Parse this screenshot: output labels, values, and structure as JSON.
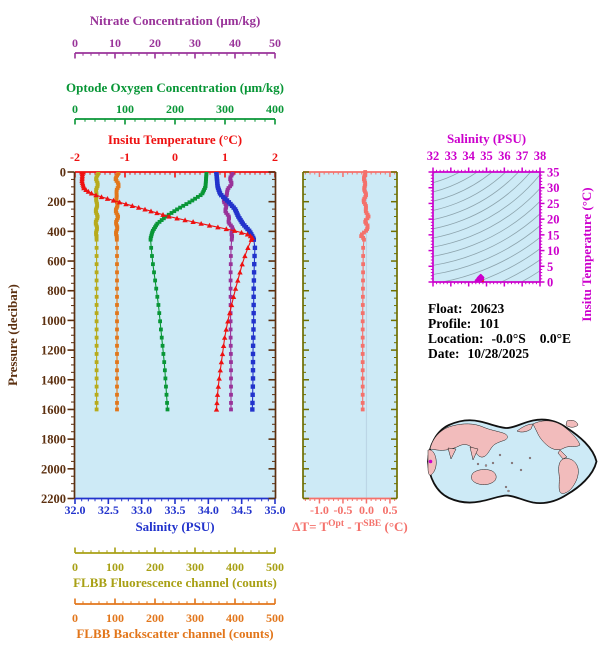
{
  "float_info": {
    "float_label": "Float:",
    "float_value": "20623",
    "profile_label": "Profile:",
    "profile_value": "101",
    "location_label": "Location:",
    "lat_value": "-0.0°S",
    "lon_value": "0.0°E",
    "date_label": "Date:",
    "date_value": "10/28/2025"
  },
  "colors": {
    "background": "#ffffff",
    "plot_bg": "#cdeaf6",
    "pressure_axis": "#5c3010",
    "temperature": "#ee1111",
    "salinity": "#2233cc",
    "oxygen": "#089636",
    "nitrate": "#993399",
    "fluorescence": "#a8a014",
    "backscatter": "#e2761b",
    "delta_t": "#f4716b",
    "delta_side_axis": "#6f6f00",
    "zero_gridline": "#bcd6e6",
    "ts_axis": "#cc00cc",
    "contour": "#8da4ad",
    "map_land": "#f2bcbc",
    "map_ocean": "#cdeaf6",
    "map_outline": "#111111",
    "map_marker": "#cc00cc"
  },
  "chart_data": [
    {
      "type": "line",
      "title": "Main profile panel: property profiles vs pressure",
      "ylabel": "Pressure (decibar)",
      "ylim": [
        0,
        2200
      ],
      "y_ticks": [
        "0",
        "200",
        "400",
        "600",
        "800",
        "1000",
        "1200",
        "1400",
        "1600",
        "1800",
        "2000",
        "2200"
      ],
      "y_minor_step": 50,
      "grid": false,
      "axes": [
        {
          "id": "nitrate",
          "label": "Nitrate Concentration (μm/kg)",
          "position": "top",
          "range": [
            0,
            50
          ],
          "ticks": [
            "0",
            "10",
            "20",
            "30",
            "40",
            "50"
          ],
          "minor_step": 2,
          "color": "#993399"
        },
        {
          "id": "oxygen",
          "label": "Optode Oxygen Concentration (μm/kg)",
          "position": "top",
          "range": [
            0,
            400
          ],
          "ticks": [
            "0",
            "100",
            "200",
            "300",
            "400"
          ],
          "minor_step": 20,
          "color": "#089636"
        },
        {
          "id": "temperature",
          "label": "Insitu Temperature (°C)",
          "position": "top",
          "range": [
            -2,
            2
          ],
          "ticks": [
            "-2",
            "-1",
            "0",
            "1",
            "2"
          ],
          "minor_step": 0.1,
          "color": "#ee1111"
        },
        {
          "id": "salinity",
          "label": "Salinity (PSU)",
          "position": "bottom",
          "range": [
            32,
            35
          ],
          "ticks": [
            "32.0",
            "32.5",
            "33.0",
            "33.5",
            "34.0",
            "34.5",
            "35.0"
          ],
          "minor_step": 0.1,
          "color": "#2233cc"
        },
        {
          "id": "fluorescence",
          "label": "FLBB Fluorescence channel (counts)",
          "position": "bottom",
          "range": [
            0,
            500
          ],
          "ticks": [
            "0",
            "100",
            "200",
            "300",
            "400",
            "500"
          ],
          "minor_step": 20,
          "color": "#a8a014"
        },
        {
          "id": "backscatter",
          "label": "FLBB Backscatter channel (counts)",
          "position": "bottom",
          "range": [
            0,
            500
          ],
          "ticks": [
            "0",
            "100",
            "200",
            "300",
            "400",
            "500"
          ],
          "minor_step": 20,
          "color": "#e2761b"
        }
      ],
      "series": [
        {
          "name": "fluorescence",
          "axis": "fluorescence",
          "color": "#b7ab1c",
          "marker": "square",
          "wiggle": 1.6,
          "points": [
            [
              0,
              57
            ],
            [
              50,
              54
            ],
            [
              100,
              56
            ],
            [
              150,
              52
            ],
            [
              200,
              55
            ],
            [
              250,
              53
            ],
            [
              300,
              55
            ],
            [
              350,
              53
            ],
            [
              400,
              54
            ],
            [
              500,
              54
            ],
            [
              700,
              54
            ],
            [
              900,
              54
            ],
            [
              1100,
              54
            ],
            [
              1300,
              54
            ],
            [
              1600,
              54
            ]
          ]
        },
        {
          "name": "backscatter",
          "axis": "backscatter",
          "color": "#e2761b",
          "marker": "square",
          "wiggle": 1.8,
          "points": [
            [
              0,
              107
            ],
            [
              50,
              103
            ],
            [
              100,
              109
            ],
            [
              150,
              102
            ],
            [
              200,
              106
            ],
            [
              250,
              103
            ],
            [
              300,
              106
            ],
            [
              350,
              104
            ],
            [
              400,
              104
            ],
            [
              500,
              105
            ],
            [
              700,
              105
            ],
            [
              900,
              105
            ],
            [
              1100,
              105
            ],
            [
              1300,
              105
            ],
            [
              1600,
              105
            ]
          ]
        },
        {
          "name": "oxygen",
          "axis": "oxygen",
          "color": "#089636",
          "marker": "square",
          "wiggle": 0,
          "points": [
            [
              0,
              263
            ],
            [
              100,
              261
            ],
            [
              150,
              254
            ],
            [
              200,
              231
            ],
            [
              250,
              205
            ],
            [
              300,
              182
            ],
            [
              350,
              164
            ],
            [
              400,
              155
            ],
            [
              450,
              151
            ],
            [
              500,
              152
            ],
            [
              600,
              155
            ],
            [
              700,
              159
            ],
            [
              800,
              163
            ],
            [
              900,
              167
            ],
            [
              1000,
              170
            ],
            [
              1100,
              173
            ],
            [
              1200,
              176
            ],
            [
              1300,
              179
            ],
            [
              1400,
              181
            ],
            [
              1500,
              183
            ],
            [
              1600,
              185
            ]
          ]
        },
        {
          "name": "nitrate",
          "axis": "nitrate",
          "color": "#993399",
          "marker": "square",
          "wiggle": 0.25,
          "points": [
            [
              0,
              39.2
            ],
            [
              80,
              38.9
            ],
            [
              120,
              38.4
            ],
            [
              150,
              37.7
            ],
            [
              200,
              37.4
            ],
            [
              250,
              37.7
            ],
            [
              300,
              38.2
            ],
            [
              350,
              38.8
            ],
            [
              400,
              39.4
            ],
            [
              450,
              39.2
            ],
            [
              500,
              39.0
            ],
            [
              700,
              38.9
            ],
            [
              900,
              38.9
            ],
            [
              1100,
              38.9
            ],
            [
              1300,
              39.0
            ],
            [
              1600,
              39.0
            ]
          ]
        },
        {
          "name": "salinity",
          "axis": "salinity",
          "color": "#2233cc",
          "marker": "square",
          "wiggle": 0,
          "points": [
            [
              0,
              34.12
            ],
            [
              100,
              34.14
            ],
            [
              150,
              34.18
            ],
            [
              200,
              34.3
            ],
            [
              250,
              34.4
            ],
            [
              300,
              34.45
            ],
            [
              350,
              34.52
            ],
            [
              400,
              34.62
            ],
            [
              450,
              34.68
            ],
            [
              500,
              34.7
            ],
            [
              600,
              34.69
            ],
            [
              800,
              34.68
            ],
            [
              1000,
              34.68
            ],
            [
              1200,
              34.67
            ],
            [
              1400,
              34.67
            ],
            [
              1600,
              34.66
            ]
          ]
        },
        {
          "name": "temperature",
          "axis": "temperature",
          "color": "#ee1111",
          "marker": "triangle",
          "wiggle": 0,
          "points": [
            [
              0,
              -1.85
            ],
            [
              60,
              -1.86
            ],
            [
              110,
              -1.82
            ],
            [
              140,
              -1.7
            ],
            [
              160,
              -1.55
            ],
            [
              200,
              -1.15
            ],
            [
              250,
              -0.62
            ],
            [
              300,
              -0.12
            ],
            [
              350,
              0.55
            ],
            [
              400,
              1.25
            ],
            [
              420,
              1.45
            ],
            [
              440,
              1.55
            ],
            [
              460,
              1.52
            ],
            [
              500,
              1.47
            ],
            [
              600,
              1.36
            ],
            [
              700,
              1.28
            ],
            [
              800,
              1.2
            ],
            [
              900,
              1.13
            ],
            [
              1000,
              1.06
            ],
            [
              1100,
              1.0
            ],
            [
              1200,
              0.96
            ],
            [
              1300,
              0.92
            ],
            [
              1400,
              0.88
            ],
            [
              1500,
              0.85
            ],
            [
              1600,
              0.83
            ]
          ]
        }
      ]
    },
    {
      "type": "line",
      "title": "Temperature difference panel",
      "xlabel_parts": [
        "ΔT= T",
        "Opt",
        " - T",
        "SBE",
        " (°C)"
      ],
      "xlim": [
        -1.35,
        0.65
      ],
      "x_ticks": [
        "-1.0",
        "-0.5",
        "0.0",
        "0.5"
      ],
      "x_minor_step": 0.1,
      "zero_gridline": 0.0,
      "ylim": [
        0,
        2200
      ],
      "series": [
        {
          "name": "delta_t",
          "color": "#f4716b",
          "marker": "square",
          "wiggle": 0.015,
          "points": [
            [
              0,
              -0.04
            ],
            [
              100,
              -0.04
            ],
            [
              150,
              -0.02
            ],
            [
              200,
              -0.05
            ],
            [
              250,
              -0.01
            ],
            [
              300,
              0.03
            ],
            [
              330,
              -0.02
            ],
            [
              360,
              0.02
            ],
            [
              400,
              -0.01
            ],
            [
              430,
              -0.12
            ],
            [
              450,
              -0.05
            ],
            [
              500,
              -0.07
            ],
            [
              600,
              -0.07
            ],
            [
              800,
              -0.075
            ],
            [
              1000,
              -0.08
            ],
            [
              1200,
              -0.08
            ],
            [
              1400,
              -0.08
            ],
            [
              1600,
              -0.08
            ]
          ]
        }
      ]
    },
    {
      "type": "scatter",
      "title": "T-S diagram with isopycnal contours",
      "xlabel": "Salinity (PSU)",
      "ylabel": "Insitu Temperature (°C)",
      "xlim": [
        32,
        38
      ],
      "ylim": [
        0,
        35
      ],
      "x_ticks": [
        "32",
        "33",
        "34",
        "35",
        "36",
        "37",
        "38"
      ],
      "y_ticks": [
        "0",
        "5",
        "10",
        "15",
        "20",
        "25",
        "30",
        "35"
      ],
      "contours": "unlabeled sigma-theta isopycnal curves",
      "points": [
        [
          34.12,
          -1.85
        ],
        [
          34.14,
          -1.82
        ],
        [
          34.18,
          -1.55
        ],
        [
          34.3,
          -1.15
        ],
        [
          34.4,
          -0.62
        ],
        [
          34.45,
          -0.12
        ],
        [
          34.52,
          0.55
        ],
        [
          34.62,
          1.25
        ],
        [
          34.66,
          1.5
        ],
        [
          34.68,
          1.55
        ],
        [
          34.7,
          1.47
        ],
        [
          34.69,
          1.36
        ],
        [
          34.68,
          1.2
        ],
        [
          34.68,
          1.06
        ],
        [
          34.67,
          0.96
        ],
        [
          34.67,
          0.88
        ],
        [
          34.66,
          0.83
        ]
      ]
    }
  ],
  "map": {
    "description": "Pacific-centered world map",
    "marker": {
      "lat": "-0.0",
      "lon": "0.0"
    }
  }
}
